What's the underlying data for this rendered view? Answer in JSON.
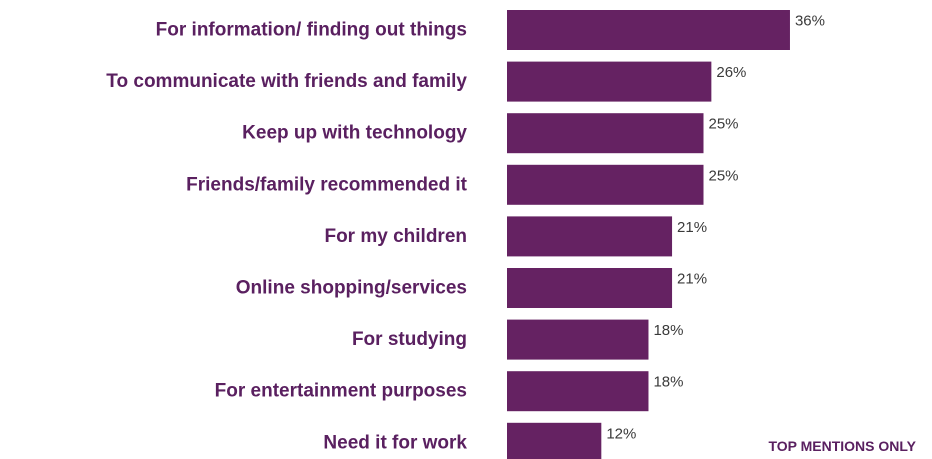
{
  "chart_data": {
    "type": "bar",
    "orientation": "horizontal",
    "categories": [
      "For information/ finding out things",
      "To communicate with friends and family",
      "Keep up with technology",
      "Friends/family recommended it",
      "For my children",
      "Online shopping/services",
      "For studying",
      "For entertainment purposes",
      "Need it for work"
    ],
    "values": [
      36,
      26,
      25,
      25,
      21,
      21,
      18,
      18,
      12
    ],
    "value_labels": [
      "36%",
      "26%",
      "25%",
      "25%",
      "21%",
      "21%",
      "18%",
      "18%",
      "12%"
    ],
    "bar_color": "#652262",
    "xlim": [
      0,
      100
    ],
    "grid": false,
    "legend": "none",
    "title": "",
    "xlabel": "",
    "ylabel": ""
  },
  "footnote": "TOP MENTIONS ONLY"
}
